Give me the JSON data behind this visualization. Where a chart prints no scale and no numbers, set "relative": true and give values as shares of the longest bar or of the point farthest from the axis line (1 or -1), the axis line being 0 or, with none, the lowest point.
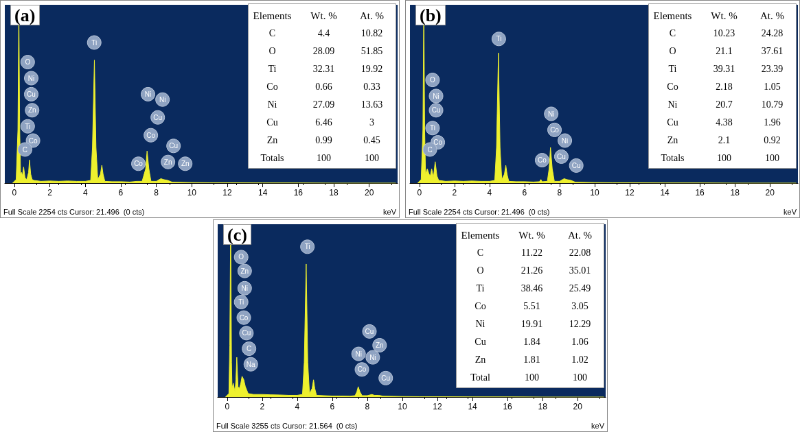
{
  "chart_data": [
    {
      "type": "area",
      "title": "(a)",
      "xlabel": "keV",
      "relative": true,
      "grid": false,
      "color": "#eef02e",
      "xlim": [
        -0.54,
        21.6
      ],
      "xticks": [
        0,
        2,
        4,
        6,
        8,
        10,
        12,
        14,
        16,
        18,
        20
      ],
      "x": [
        -0.1,
        0.1,
        0.2,
        0.25,
        0.3,
        0.35,
        0.4,
        0.45,
        0.52,
        0.6,
        0.7,
        0.8,
        0.85,
        0.92,
        1.0,
        1.1,
        1.5,
        2,
        2.5,
        3,
        3.5,
        4,
        4.3,
        4.4,
        4.51,
        4.6,
        4.7,
        4.85,
        4.93,
        5.0,
        5.1,
        5.5,
        6,
        6.5,
        6.9,
        7.2,
        7.4,
        7.48,
        7.58,
        7.7,
        8.0,
        8.26,
        8.4,
        8.65,
        8.9,
        9.5,
        10,
        11,
        12,
        14,
        16,
        18,
        20,
        21.5
      ],
      "values": [
        0,
        0.02,
        0.3,
        1,
        0.3,
        0.05,
        0.06,
        0.04,
        0.09,
        0.03,
        0.02,
        0.06,
        0.13,
        0.05,
        0.02,
        0.015,
        0.01,
        0.012,
        0.01,
        0.012,
        0.01,
        0.01,
        0.015,
        0.2,
        0.69,
        0.2,
        0.02,
        0.05,
        0.1,
        0.05,
        0.01,
        0.008,
        0.008,
        0.006,
        0.01,
        0.01,
        0.08,
        0.18,
        0.08,
        0.01,
        0.01,
        0.025,
        0.02,
        0.015,
        0.005,
        0.004,
        0.003,
        0.002,
        0.002,
        0.001,
        0.001,
        0,
        0,
        0
      ],
      "annotations": [
        "Full Scale 2254 cts Cursor: 21.496  (0 cts)",
        "Elements\tWt. %\tAt. %",
        "C\t4.4\t10.82",
        "O\t28.09\t51.85",
        "Ti\t32.31\t19.92",
        "Co\t0.66\t0.33",
        "Ni\t27.09\t13.63",
        "Cu\t6.46\t3",
        "Zn\t0.99\t0.45",
        "Totals\t100\t100",
        "O",
        "Ni",
        "Cu",
        "Zn",
        "Ti",
        "Co",
        "C",
        "Ti",
        "Ni",
        "Ni",
        "Cu",
        "Co",
        "Co",
        "Cu",
        "Zn",
        "Zn"
      ]
    },
    {
      "type": "area",
      "title": "(b)",
      "xlabel": "keV",
      "relative": true,
      "grid": false,
      "color": "#eef02e",
      "xlim": [
        -0.54,
        21.6
      ],
      "xticks": [
        0,
        2,
        4,
        6,
        8,
        10,
        12,
        14,
        16,
        18,
        20
      ],
      "x": [
        -0.1,
        0.1,
        0.2,
        0.25,
        0.3,
        0.35,
        0.45,
        0.55,
        0.62,
        0.7,
        0.8,
        0.9,
        1.0,
        1.1,
        1.5,
        2,
        2.5,
        3,
        3.5,
        4,
        4.3,
        4.4,
        4.51,
        4.6,
        4.7,
        4.85,
        4.93,
        5.0,
        5.1,
        5.5,
        6,
        6.5,
        6.85,
        6.93,
        7.0,
        7.3,
        7.4,
        7.48,
        7.58,
        7.7,
        8.0,
        8.26,
        8.4,
        8.65,
        8.9,
        9.5,
        10,
        11,
        12,
        14,
        16,
        18,
        20,
        21.5
      ],
      "values": [
        0,
        0.02,
        0.3,
        1,
        0.3,
        0.05,
        0.08,
        0.05,
        0.04,
        0.08,
        0.03,
        0.12,
        0.04,
        0.015,
        0.01,
        0.012,
        0.01,
        0.012,
        0.01,
        0.01,
        0.015,
        0.2,
        0.73,
        0.2,
        0.02,
        0.05,
        0.1,
        0.05,
        0.01,
        0.008,
        0.008,
        0.006,
        0.008,
        0.02,
        0.008,
        0.01,
        0.08,
        0.2,
        0.08,
        0.01,
        0.01,
        0.025,
        0.02,
        0.015,
        0.005,
        0.004,
        0.003,
        0.002,
        0.002,
        0.001,
        0.001,
        0,
        0,
        0
      ],
      "annotations": [
        "Full Scale 2254 cts Cursor: 21.496  (0 cts)",
        "Elements\tWt. %\tAt. %",
        "C\t10.23\t24.28",
        "O\t21.1\t37.61",
        "Ti\t39.31\t23.39",
        "Co\t2.18\t1.05",
        "Ni\t20.7\t10.79",
        "Cu\t4.38\t1.96",
        "Zn\t2.1\t0.92",
        "Totals\t100\t100",
        "O",
        "Ni",
        "Cu",
        "Ti",
        "Co",
        "C",
        "Ti",
        "Ni",
        "Co",
        "Ni",
        "Co",
        "Cu",
        "Cu"
      ]
    },
    {
      "type": "area",
      "title": "(c)",
      "xlabel": "keV",
      "relative": true,
      "grid": false,
      "color": "#eef02e",
      "xlim": [
        -0.54,
        21.6
      ],
      "xticks": [
        0,
        2,
        4,
        6,
        8,
        10,
        12,
        14,
        16,
        18,
        20
      ],
      "x": [
        -0.1,
        0.1,
        0.15,
        0.2,
        0.25,
        0.28,
        0.35,
        0.45,
        0.5,
        0.55,
        0.62,
        0.7,
        0.78,
        0.85,
        0.95,
        1.04,
        1.2,
        1.5,
        2,
        2.5,
        3,
        3.5,
        4,
        4.3,
        4.4,
        4.51,
        4.6,
        4.7,
        4.85,
        4.93,
        5.0,
        5.1,
        5.5,
        6,
        6.5,
        7.0,
        7.3,
        7.4,
        7.48,
        7.58,
        7.7,
        8.0,
        8.26,
        8.4,
        8.65,
        8.9,
        9.5,
        10,
        11,
        12,
        14,
        16,
        18,
        20,
        21.5
      ],
      "values": [
        0,
        0.02,
        0.3,
        1,
        0.2,
        0.05,
        0.08,
        0.03,
        0.1,
        0.23,
        0.06,
        0.05,
        0.08,
        0.12,
        0.1,
        0.06,
        0.02,
        0.015,
        0.015,
        0.013,
        0.012,
        0.01,
        0.01,
        0.015,
        0.2,
        0.77,
        0.2,
        0.02,
        0.05,
        0.1,
        0.05,
        0.01,
        0.008,
        0.006,
        0.006,
        0.005,
        0.008,
        0.03,
        0.06,
        0.03,
        0.008,
        0.008,
        0.015,
        0.01,
        0.01,
        0.005,
        0.004,
        0.003,
        0.002,
        0.002,
        0.001,
        0.001,
        0,
        0,
        0
      ],
      "annotations": [
        "Full Scale 3255 cts Cursor: 21.564  (0 cts)",
        "Elements\tWt. %\tAt. %",
        "C\t11.22\t22.08",
        "O\t21.26\t35.01",
        "Ti\t38.46\t25.49",
        "Co\t5.51\t3.05",
        "Ni\t19.91\t12.29",
        "Cu\t1.84\t1.06",
        "Zn\t1.81\t1.02",
        "Total\t100\t100",
        "O",
        "Zn",
        "Ni",
        "Ti",
        "Co",
        "Cu",
        "C",
        "Na",
        "Ti",
        "Cu",
        "Zn",
        "Ni",
        "Ni",
        "Co",
        "Cu"
      ]
    }
  ]
}
